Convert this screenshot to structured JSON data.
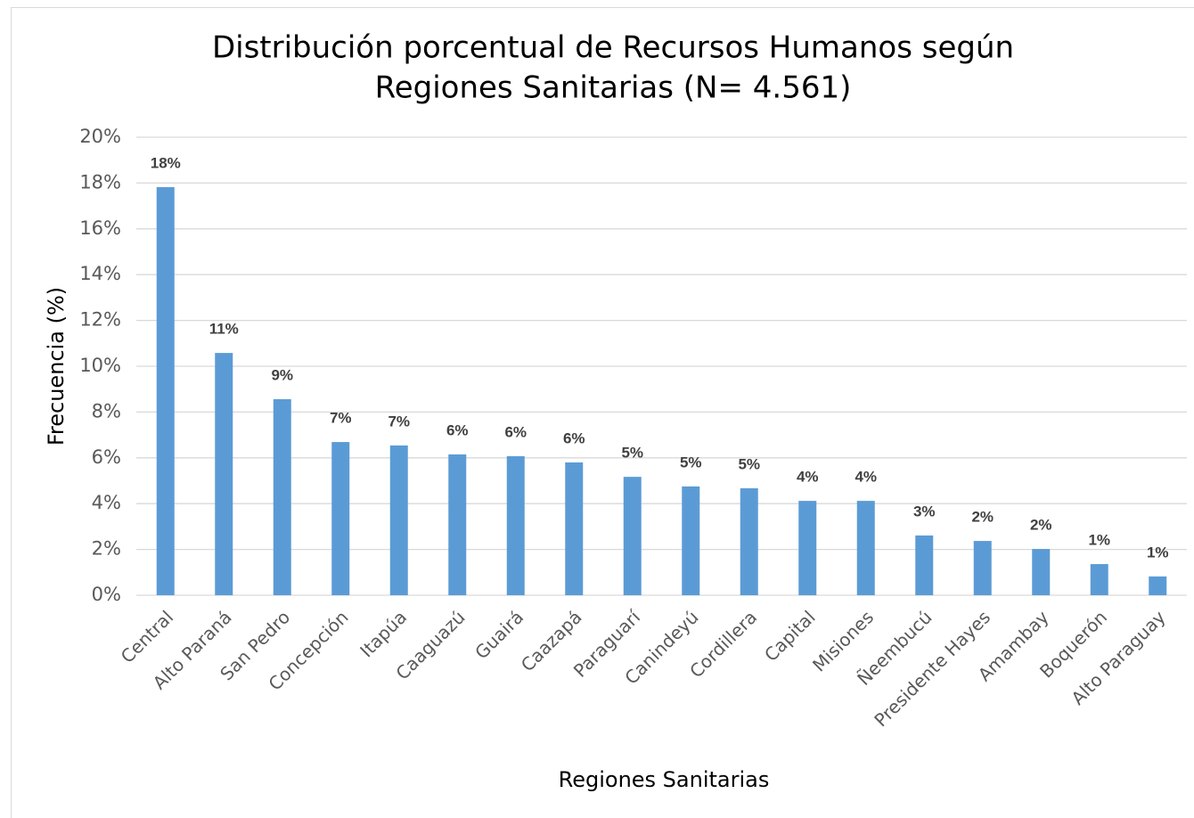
{
  "chart_data": {
    "type": "bar",
    "title": [
      "Distribución porcentual de Recursos Humanos según",
      "Regiones Sanitarias (N= 4.561)"
    ],
    "x_label": "Regiones Sanitarias",
    "y_label": "Frecuencia (%)",
    "categories": [
      "Central",
      "Alto Paraná",
      "San Pedro",
      "Concepción",
      "Itapúa",
      "Caaguazú",
      "Guairá",
      "Caazapá",
      "Paraguarí",
      "Canindeyú",
      "Cordillera",
      "Capital",
      "Misiones",
      "Ñeembucú",
      "Presidente Hayes",
      "Amambay",
      "Boquerón",
      "Alto Paraguay"
    ],
    "values": [
      17.82,
      10.58,
      8.56,
      6.69,
      6.54,
      6.15,
      6.07,
      5.8,
      5.17,
      4.75,
      4.67,
      4.12,
      4.12,
      2.61,
      2.37,
      2.02,
      1.36,
      0.82
    ],
    "value_labels": [
      "18%",
      "11%",
      "9%",
      "7%",
      "7%",
      "6%",
      "6%",
      "6%",
      "5%",
      "5%",
      "5%",
      "4%",
      "4%",
      "3%",
      "2%",
      "2%",
      "1%",
      "1%"
    ],
    "color": "#5b9bd5",
    "ylim": [
      0,
      20
    ],
    "yticks": [
      {
        "value": 0,
        "label": "0%"
      },
      {
        "value": 2,
        "label": "2%"
      },
      {
        "value": 4,
        "label": "4%"
      },
      {
        "value": 6,
        "label": "6%"
      },
      {
        "value": 8,
        "label": "8%"
      },
      {
        "value": 10,
        "label": "10%"
      },
      {
        "value": 12,
        "label": "12%"
      },
      {
        "value": 14,
        "label": "14%"
      },
      {
        "value": 16,
        "label": "16%"
      },
      {
        "value": 18,
        "label": "18%"
      },
      {
        "value": 20,
        "label": "20%"
      }
    ],
    "grid": true
  }
}
